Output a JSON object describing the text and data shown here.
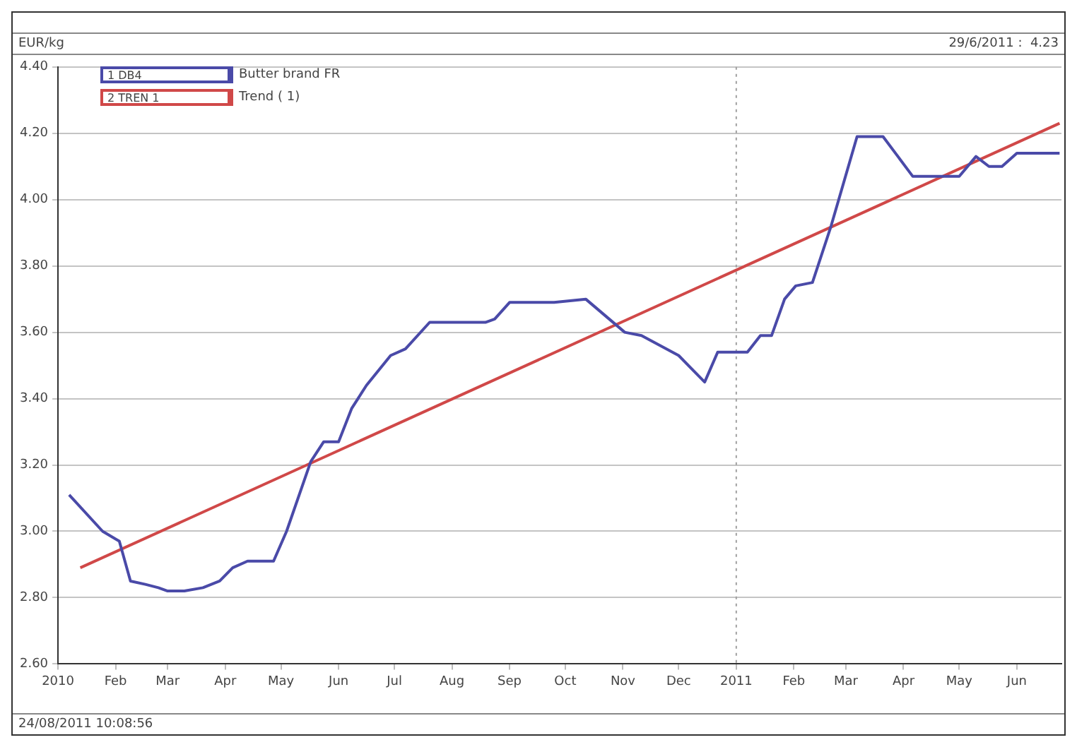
{
  "chart_data": {
    "type": "line",
    "ylabel": "EUR/kg",
    "annotations": [
      "1 DB4",
      "2 TREN 1",
      "29/6/2011 :  4.23",
      "24/08/2011 10:08:56"
    ],
    "series": [
      {
        "name": "Butter brand FR",
        "color": "#4a4aa8",
        "x": [
          "2010-01-07",
          "2010-01-25",
          "2010-02-03",
          "2010-02-09",
          "2010-02-17",
          "2010-02-24",
          "2010-03-01",
          "2010-03-10",
          "2010-03-20",
          "2010-03-29",
          "2010-04-05",
          "2010-04-13",
          "2010-04-27",
          "2010-05-04",
          "2010-05-17",
          "2010-05-24",
          "2010-06-01",
          "2010-06-08",
          "2010-06-16",
          "2010-06-29",
          "2010-07-07",
          "2010-07-20",
          "2010-08-19",
          "2010-08-24",
          "2010-09-01",
          "2010-09-25",
          "2010-10-12",
          "2010-11-02",
          "2010-11-11",
          "2010-12-01",
          "2010-12-08",
          "2010-12-15",
          "2010-12-22",
          "2011-01-07",
          "2011-01-14",
          "2011-01-20",
          "2011-01-27",
          "2011-02-02",
          "2011-02-11",
          "2011-02-21",
          "2011-03-07",
          "2011-03-21",
          "2011-04-06",
          "2011-05-01",
          "2011-05-10",
          "2011-05-17",
          "2011-05-24",
          "2011-06-01",
          "2011-06-24"
        ],
        "values": [
          3.11,
          3.0,
          2.97,
          2.85,
          2.84,
          2.83,
          2.82,
          2.82,
          2.83,
          2.85,
          2.89,
          2.91,
          2.91,
          3.0,
          3.21,
          3.27,
          3.27,
          3.37,
          3.44,
          3.53,
          3.55,
          3.63,
          3.63,
          3.64,
          3.69,
          3.69,
          3.7,
          3.6,
          3.59,
          3.53,
          3.49,
          3.45,
          3.54,
          3.54,
          3.59,
          3.59,
          3.7,
          3.74,
          3.75,
          3.92,
          4.19,
          4.19,
          4.07,
          4.07,
          4.13,
          4.1,
          4.1,
          4.14,
          4.14
        ]
      },
      {
        "name": "Trend ( 1)",
        "color": "#d04848",
        "x": [
          "2010-01-13",
          "2011-06-24"
        ],
        "values": [
          2.89,
          4.23
        ]
      }
    ],
    "xlim": [
      "2010-01-01",
      "2011-06-25"
    ],
    "xticks": [
      {
        "value": "2010-01-01",
        "label": "2010"
      },
      {
        "value": "2010-02-01",
        "label": "Feb"
      },
      {
        "value": "2010-03-01",
        "label": "Mar"
      },
      {
        "value": "2010-04-01",
        "label": "Apr"
      },
      {
        "value": "2010-05-01",
        "label": "May"
      },
      {
        "value": "2010-06-01",
        "label": "Jun"
      },
      {
        "value": "2010-07-01",
        "label": "Jul"
      },
      {
        "value": "2010-08-01",
        "label": "Aug"
      },
      {
        "value": "2010-09-01",
        "label": "Sep"
      },
      {
        "value": "2010-10-01",
        "label": "Oct"
      },
      {
        "value": "2010-11-01",
        "label": "Nov"
      },
      {
        "value": "2010-12-01",
        "label": "Dec"
      },
      {
        "value": "2011-01-01",
        "label": "2011"
      },
      {
        "value": "2011-02-01",
        "label": "Feb"
      },
      {
        "value": "2011-03-01",
        "label": "Mar"
      },
      {
        "value": "2011-04-01",
        "label": "Apr"
      },
      {
        "value": "2011-05-01",
        "label": "May"
      },
      {
        "value": "2011-06-01",
        "label": "Jun"
      }
    ],
    "ylim": [
      2.6,
      4.4
    ],
    "yticks": [
      {
        "value": 2.6,
        "label": "2.60"
      },
      {
        "value": 2.8,
        "label": "2.80"
      },
      {
        "value": 3.0,
        "label": "3.00"
      },
      {
        "value": 3.2,
        "label": "3.20"
      },
      {
        "value": 3.4,
        "label": "3.40"
      },
      {
        "value": 3.6,
        "label": "3.60"
      },
      {
        "value": 3.8,
        "label": "3.80"
      },
      {
        "value": 4.0,
        "label": "4.00"
      },
      {
        "value": 4.2,
        "label": "4.20"
      },
      {
        "value": 4.4,
        "label": "4.40"
      }
    ],
    "ref_lines": [
      {
        "axis": "x",
        "value": "2011-01-01",
        "color": "#a0a0a0",
        "line_style": "dotted"
      }
    ],
    "grid": "y",
    "legend": "top left",
    "marker": "none",
    "line_style": "solid"
  }
}
